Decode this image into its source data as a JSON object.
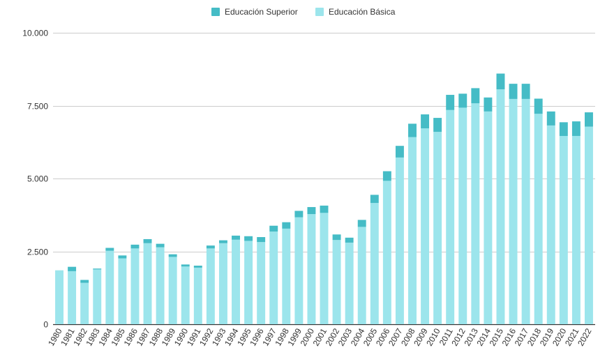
{
  "chart_data": {
    "type": "bar",
    "stacked": true,
    "categories": [
      "1980",
      "1981",
      "1982",
      "1983",
      "1984",
      "1985",
      "1986",
      "1987",
      "1988",
      "1989",
      "1990",
      "1991",
      "1992",
      "1993",
      "1994",
      "1995",
      "1996",
      "1997",
      "1998",
      "1999",
      "2000",
      "2001",
      "2002",
      "2003",
      "2004",
      "2005",
      "2006",
      "2007",
      "2008",
      "2009",
      "2010",
      "2011",
      "2012",
      "2013",
      "2014",
      "2015",
      "2016",
      "2017",
      "2018",
      "2019",
      "2020",
      "2021",
      "2022"
    ],
    "series": [
      {
        "name": "Educación Básica",
        "color": "#9ce5ec",
        "values": [
          1850,
          1820,
          1420,
          1880,
          2520,
          2260,
          2600,
          2780,
          2640,
          2310,
          1980,
          1940,
          2600,
          2780,
          2900,
          2860,
          2820,
          3180,
          3280,
          3670,
          3780,
          3820,
          2890,
          2800,
          3340,
          4160,
          4920,
          5720,
          6420,
          6720,
          6600,
          7350,
          7430,
          7580,
          7300,
          8060,
          7730,
          7730,
          7220,
          6820,
          6460,
          6460,
          6780
        ]
      },
      {
        "name": "Educación Superior",
        "color": "#45bcc6",
        "values": [
          0,
          150,
          100,
          30,
          100,
          100,
          130,
          140,
          120,
          90,
          70,
          70,
          100,
          100,
          140,
          160,
          170,
          200,
          220,
          220,
          240,
          250,
          190,
          170,
          240,
          280,
          330,
          400,
          460,
          480,
          480,
          520,
          480,
          520,
          480,
          540,
          520,
          520,
          520,
          480,
          470,
          500,
          490
        ]
      }
    ],
    "ylim": [
      0,
      10000
    ],
    "yticks": [
      0,
      2500,
      5000,
      7500,
      10000
    ],
    "ytick_labels": [
      "0",
      "2.500",
      "5.000",
      "7.500",
      "10.000"
    ],
    "grid": true,
    "legend_position": "top-center"
  },
  "legend": [
    {
      "label": "Educación Superior",
      "color": "#45bcc6"
    },
    {
      "label": "Educación Básica",
      "color": "#9ce5ec"
    }
  ]
}
